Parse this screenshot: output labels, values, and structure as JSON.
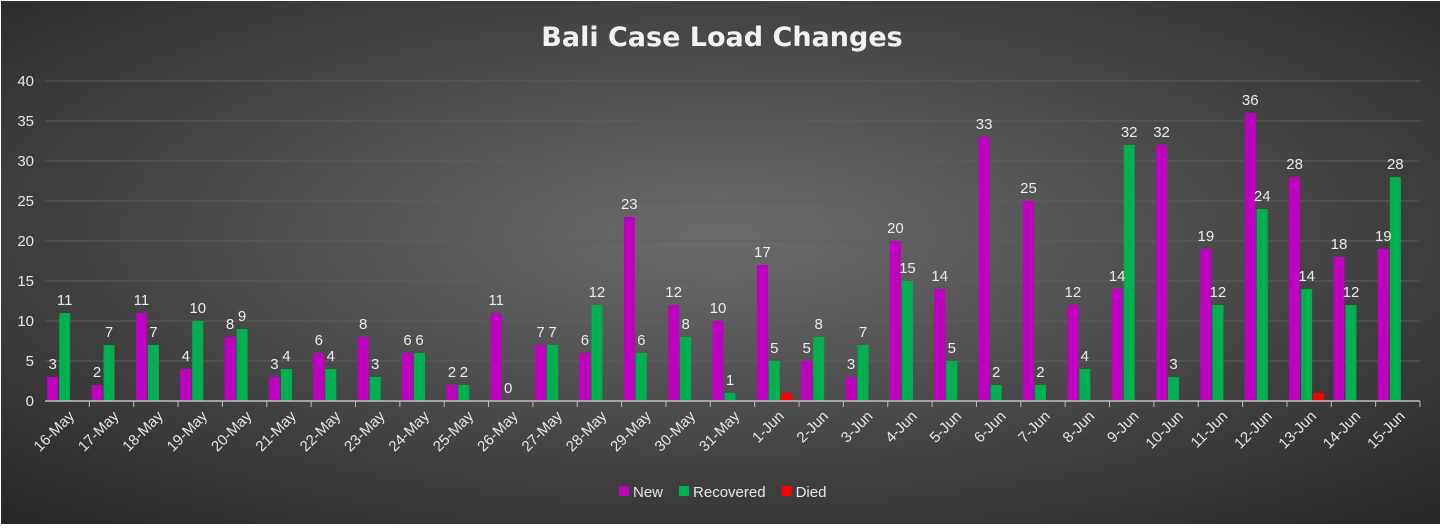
{
  "chart_data": {
    "type": "bar",
    "title": "Bali Case Load Changes",
    "xlabel": "",
    "ylabel": "",
    "ylim": [
      0,
      40
    ],
    "yticks": [
      0,
      5,
      10,
      15,
      20,
      25,
      30,
      35,
      40
    ],
    "grid": true,
    "legend_position": "bottom",
    "categories": [
      "16-May",
      "17-May",
      "18-May",
      "19-May",
      "20-May",
      "21-May",
      "22-May",
      "23-May",
      "24-May",
      "25-May",
      "26-May",
      "27-May",
      "28-May",
      "29-May",
      "30-May",
      "31-May",
      "1-Jun",
      "2-Jun",
      "3-Jun",
      "4-Jun",
      "5-Jun",
      "6-Jun",
      "7-Jun",
      "8-Jun",
      "9-Jun",
      "10-Jun",
      "11-Jun",
      "12-Jun",
      "13-Jun",
      "14-Jun",
      "15-Jun"
    ],
    "series": [
      {
        "name": "New",
        "color": "#c000c0",
        "values": [
          3,
          2,
          11,
          4,
          8,
          3,
          6,
          8,
          6,
          2,
          11,
          7,
          6,
          23,
          12,
          10,
          17,
          5,
          3,
          20,
          14,
          33,
          25,
          12,
          14,
          32,
          19,
          36,
          28,
          18,
          19
        ]
      },
      {
        "name": "Recovered",
        "color": "#00b050",
        "values": [
          11,
          7,
          7,
          10,
          9,
          4,
          4,
          3,
          6,
          2,
          0,
          7,
          12,
          6,
          8,
          1,
          5,
          8,
          7,
          15,
          5,
          2,
          2,
          4,
          32,
          3,
          12,
          24,
          14,
          12,
          28
        ]
      },
      {
        "name": "Died",
        "color": "#ff0000",
        "values": [
          0,
          0,
          0,
          0,
          0,
          0,
          0,
          0,
          0,
          0,
          0,
          0,
          0,
          0,
          0,
          0,
          1,
          0,
          0,
          0,
          0,
          0,
          0,
          0,
          0,
          0,
          0,
          0,
          1,
          0,
          0
        ]
      }
    ],
    "data_labels": [
      {
        "series": 0,
        "index": 0,
        "text": "3"
      },
      {
        "series": 0,
        "index": 1,
        "text": "2"
      },
      {
        "series": 0,
        "index": 2,
        "text": "11"
      },
      {
        "series": 0,
        "index": 3,
        "text": "4"
      },
      {
        "series": 0,
        "index": 4,
        "text": "8"
      },
      {
        "series": 0,
        "index": 5,
        "text": "3"
      },
      {
        "series": 0,
        "index": 6,
        "text": "6"
      },
      {
        "series": 0,
        "index": 7,
        "text": "8"
      },
      {
        "series": 0,
        "index": 8,
        "text": "6"
      },
      {
        "series": 0,
        "index": 9,
        "text": "2"
      },
      {
        "series": 0,
        "index": 10,
        "text": "11"
      },
      {
        "series": 0,
        "index": 11,
        "text": "7"
      },
      {
        "series": 0,
        "index": 12,
        "text": "6"
      },
      {
        "series": 0,
        "index": 13,
        "text": "23"
      },
      {
        "series": 0,
        "index": 14,
        "text": "12"
      },
      {
        "series": 0,
        "index": 15,
        "text": "10"
      },
      {
        "series": 0,
        "index": 16,
        "text": "17"
      },
      {
        "series": 0,
        "index": 17,
        "text": "5"
      },
      {
        "series": 0,
        "index": 18,
        "text": "3"
      },
      {
        "series": 0,
        "index": 19,
        "text": "20"
      },
      {
        "series": 0,
        "index": 20,
        "text": "14"
      },
      {
        "series": 0,
        "index": 21,
        "text": "33"
      },
      {
        "series": 0,
        "index": 22,
        "text": "25"
      },
      {
        "series": 0,
        "index": 23,
        "text": "12"
      },
      {
        "series": 0,
        "index": 24,
        "text": "14"
      },
      {
        "series": 0,
        "index": 25,
        "text": "32"
      },
      {
        "series": 0,
        "index": 26,
        "text": "19"
      },
      {
        "series": 0,
        "index": 27,
        "text": "36"
      },
      {
        "series": 0,
        "index": 28,
        "text": "28"
      },
      {
        "series": 0,
        "index": 29,
        "text": "18"
      },
      {
        "series": 0,
        "index": 30,
        "text": "19"
      },
      {
        "series": 1,
        "index": 0,
        "text": "11"
      },
      {
        "series": 1,
        "index": 1,
        "text": "7"
      },
      {
        "series": 1,
        "index": 2,
        "text": "7"
      },
      {
        "series": 1,
        "index": 3,
        "text": "10"
      },
      {
        "series": 1,
        "index": 4,
        "text": "9"
      },
      {
        "series": 1,
        "index": 5,
        "text": "4"
      },
      {
        "series": 1,
        "index": 6,
        "text": "4"
      },
      {
        "series": 1,
        "index": 7,
        "text": "3"
      },
      {
        "series": 1,
        "index": 8,
        "text": "6"
      },
      {
        "series": 1,
        "index": 9,
        "text": "2"
      },
      {
        "series": 1,
        "index": 10,
        "text": "0"
      },
      {
        "series": 1,
        "index": 11,
        "text": "7"
      },
      {
        "series": 1,
        "index": 12,
        "text": "12"
      },
      {
        "series": 1,
        "index": 13,
        "text": "6"
      },
      {
        "series": 1,
        "index": 14,
        "text": "8"
      },
      {
        "series": 1,
        "index": 15,
        "text": "1"
      },
      {
        "series": 1,
        "index": 16,
        "text": "5"
      },
      {
        "series": 1,
        "index": 17,
        "text": "8"
      },
      {
        "series": 1,
        "index": 18,
        "text": "7"
      },
      {
        "series": 1,
        "index": 19,
        "text": "15"
      },
      {
        "series": 1,
        "index": 20,
        "text": "5"
      },
      {
        "series": 1,
        "index": 21,
        "text": "2"
      },
      {
        "series": 1,
        "index": 22,
        "text": "2"
      },
      {
        "series": 1,
        "index": 23,
        "text": "4"
      },
      {
        "series": 1,
        "index": 24,
        "text": "32"
      },
      {
        "series": 1,
        "index": 25,
        "text": "3"
      },
      {
        "series": 1,
        "index": 26,
        "text": "12"
      },
      {
        "series": 1,
        "index": 27,
        "text": "24"
      },
      {
        "series": 1,
        "index": 28,
        "text": "14"
      },
      {
        "series": 1,
        "index": 29,
        "text": "12"
      },
      {
        "series": 1,
        "index": 30,
        "text": "28"
      }
    ]
  },
  "colors": {
    "background_center": "#6b6b6b",
    "background_edge": "#262626",
    "gridline": "#5e5e5e",
    "axis_line": "#bfbfbf",
    "text": "#e6e6e6"
  }
}
